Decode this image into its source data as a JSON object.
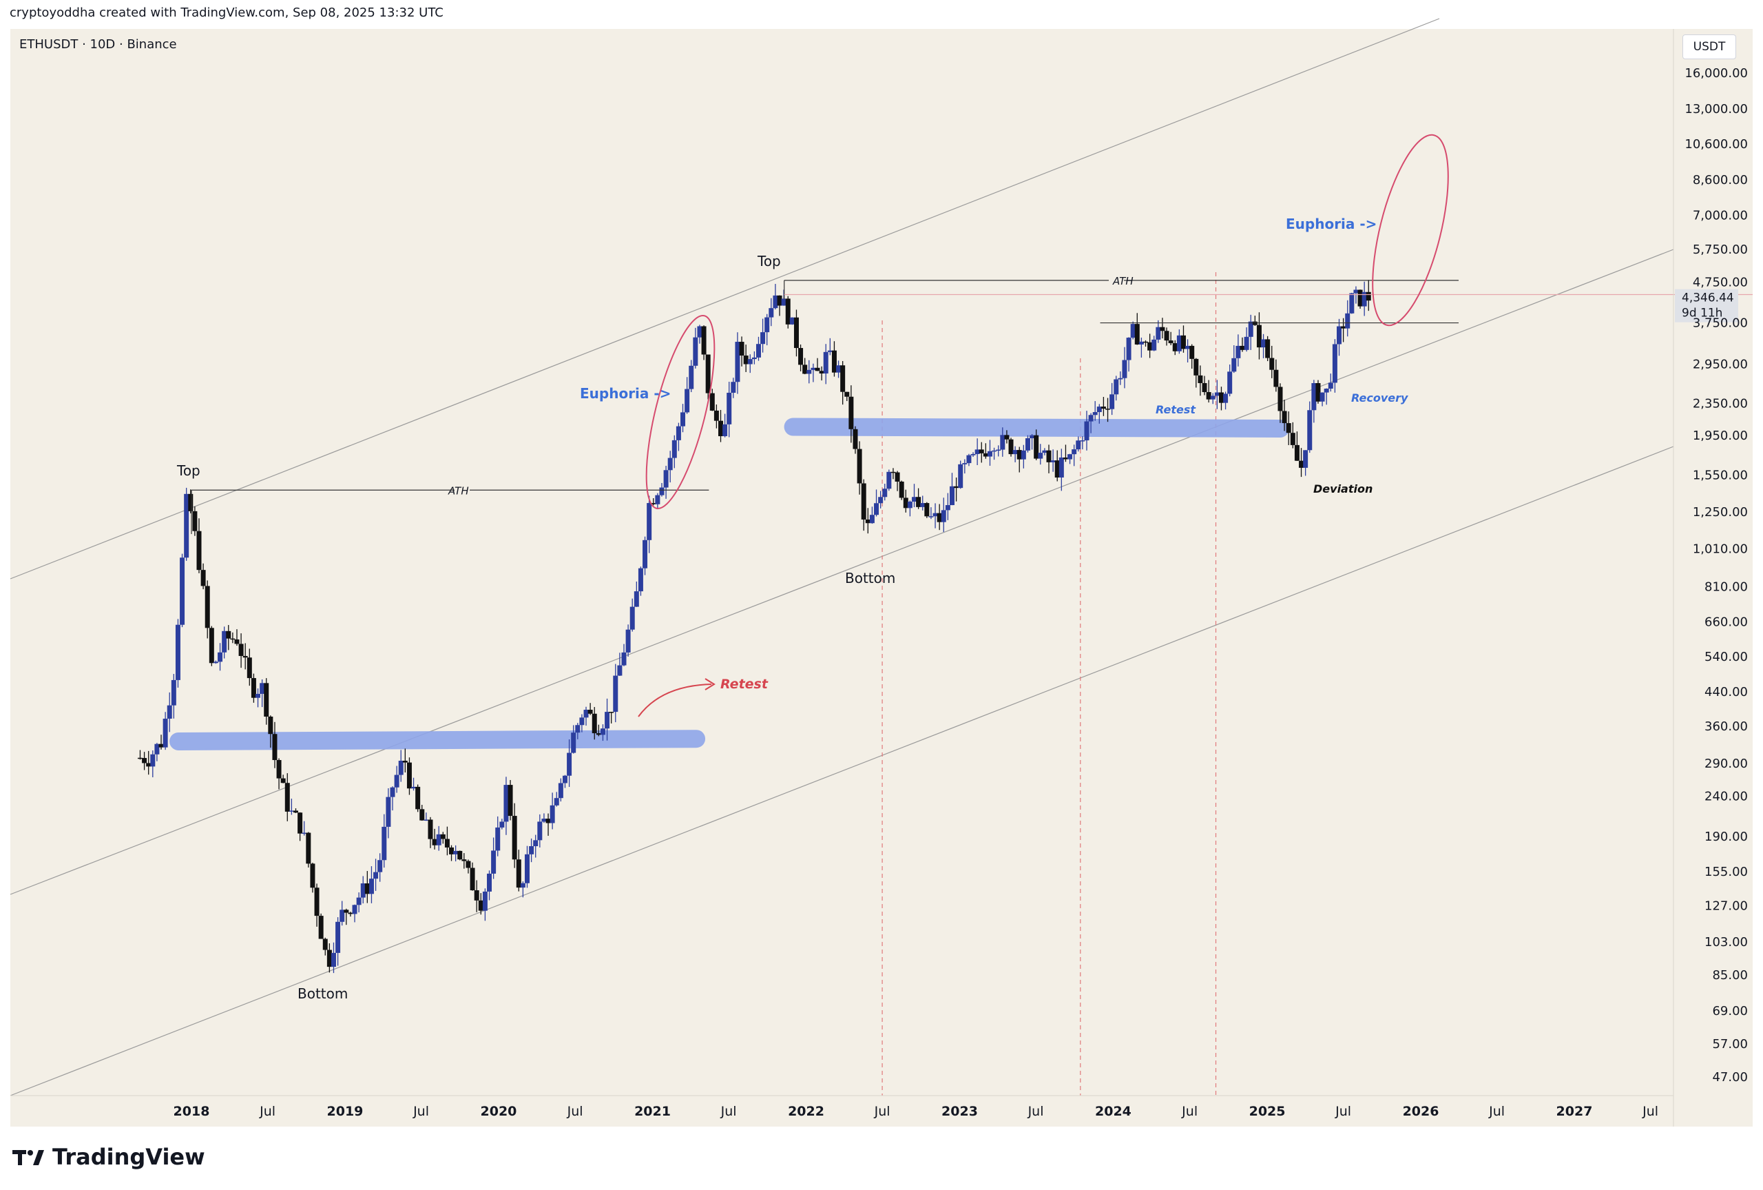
{
  "header": {
    "attribution": "cryptoyoddha created with TradingView.com, Sep 08, 2025 13:32 UTC"
  },
  "symbol_line": "ETHUSDT · 10D · Binance",
  "currency_label": "USDT",
  "brand": {
    "name": "TradingView"
  },
  "price_badge": {
    "price": "4,346.44",
    "countdown": "9d 11h"
  },
  "colors": {
    "background": "#f3efe6",
    "bull_candle": "#2c3e9e",
    "bear_candle": "#111111",
    "zone": "#8fa6ea",
    "euphoria_text": "#3b6fd8",
    "ellipse": "#d64b6e",
    "retest_red": "#d6454f",
    "deviation_text": "#111111",
    "channel": "#9a9a9a",
    "vline": "#e0787a"
  },
  "chart_data": {
    "type": "candlestick",
    "symbol": "ETHUSDT",
    "interval": "10D",
    "exchange": "Binance",
    "scale": "log",
    "currency": "USDT",
    "y_ticks": [
      "16,000.00",
      "13,000.00",
      "10,600.00",
      "8,600.00",
      "7,000.00",
      "5,750.00",
      "4,750.00",
      "3,750.00",
      "2,950.00",
      "2,350.00",
      "1,950.00",
      "1,550.00",
      "1,250.00",
      "1,010.00",
      "810.00",
      "660.00",
      "540.00",
      "440.00",
      "360.00",
      "290.00",
      "240.00",
      "190.00",
      "155.00",
      "127.00",
      "103.00",
      "85.00",
      "69.00",
      "57.00",
      "47.00"
    ],
    "x_ticks": [
      "2018",
      "Jul",
      "2019",
      "Jul",
      "2020",
      "Jul",
      "2021",
      "Jul",
      "2022",
      "Jul",
      "2023",
      "Jul",
      "2024",
      "Jul",
      "2025",
      "Jul",
      "2026",
      "Jul",
      "2027",
      "Jul"
    ],
    "x_ticks_bold": [
      true,
      false,
      true,
      false,
      true,
      false,
      true,
      false,
      true,
      false,
      true,
      false,
      true,
      false,
      true,
      false,
      true,
      false,
      true,
      false
    ],
    "last_price": 4346.44,
    "series_path": [
      [
        "2017-09-01",
        300
      ],
      [
        "2017-10-01",
        300
      ],
      [
        "2017-11-01",
        330
      ],
      [
        "2017-12-01",
        500
      ],
      [
        "2018-01-01",
        1400
      ],
      [
        "2018-02-01",
        900
      ],
      [
        "2018-03-01",
        500
      ],
      [
        "2018-04-01",
        600
      ],
      [
        "2018-05-01",
        600
      ],
      [
        "2018-06-01",
        450
      ],
      [
        "2018-07-01",
        450
      ],
      [
        "2018-08-01",
        280
      ],
      [
        "2018-09-01",
        220
      ],
      [
        "2018-10-01",
        200
      ],
      [
        "2018-11-01",
        130
      ],
      [
        "2018-12-01",
        90
      ],
      [
        "2019-01-01",
        120
      ],
      [
        "2019-02-01",
        130
      ],
      [
        "2019-03-01",
        140
      ],
      [
        "2019-04-01",
        160
      ],
      [
        "2019-05-01",
        250
      ],
      [
        "2019-06-01",
        300
      ],
      [
        "2019-07-01",
        220
      ],
      [
        "2019-08-01",
        190
      ],
      [
        "2019-09-01",
        180
      ],
      [
        "2019-10-01",
        180
      ],
      [
        "2019-11-01",
        150
      ],
      [
        "2019-12-01",
        130
      ],
      [
        "2020-01-01",
        170
      ],
      [
        "2020-02-01",
        260
      ],
      [
        "2020-03-01",
        130
      ],
      [
        "2020-04-01",
        190
      ],
      [
        "2020-05-01",
        210
      ],
      [
        "2020-06-01",
        230
      ],
      [
        "2020-07-01",
        330
      ],
      [
        "2020-08-01",
        400
      ],
      [
        "2020-09-01",
        360
      ],
      [
        "2020-10-01",
        390
      ],
      [
        "2020-11-01",
        550
      ],
      [
        "2020-12-01",
        730
      ],
      [
        "2021-01-01",
        1300
      ],
      [
        "2021-02-01",
        1500
      ],
      [
        "2021-03-01",
        1800
      ],
      [
        "2021-04-01",
        2500
      ],
      [
        "2021-05-01",
        3700
      ],
      [
        "2021-06-01",
        2200
      ],
      [
        "2021-07-01",
        2000
      ],
      [
        "2021-08-01",
        3200
      ],
      [
        "2021-09-01",
        3000
      ],
      [
        "2021-10-01",
        3800
      ],
      [
        "2021-11-01",
        4500
      ],
      [
        "2021-12-01",
        3900
      ],
      [
        "2022-01-01",
        3000
      ],
      [
        "2022-02-01",
        2700
      ],
      [
        "2022-03-01",
        3100
      ],
      [
        "2022-04-01",
        2800
      ],
      [
        "2022-05-01",
        2000
      ],
      [
        "2022-06-01",
        1100
      ],
      [
        "2022-07-01",
        1300
      ],
      [
        "2022-08-01",
        1700
      ],
      [
        "2022-09-01",
        1350
      ],
      [
        "2022-10-01",
        1300
      ],
      [
        "2022-11-01",
        1200
      ],
      [
        "2022-12-01",
        1200
      ],
      [
        "2023-01-01",
        1500
      ],
      [
        "2023-02-01",
        1650
      ],
      [
        "2023-03-01",
        1750
      ],
      [
        "2023-04-01",
        1900
      ],
      [
        "2023-05-01",
        1850
      ],
      [
        "2023-06-01",
        1800
      ],
      [
        "2023-07-01",
        1850
      ],
      [
        "2023-08-01",
        1700
      ],
      [
        "2023-09-01",
        1600
      ],
      [
        "2023-10-01",
        1700
      ],
      [
        "2023-11-01",
        2000
      ],
      [
        "2023-12-01",
        2250
      ],
      [
        "2024-01-01",
        2400
      ],
      [
        "2024-02-01",
        2900
      ],
      [
        "2024-03-01",
        3600
      ],
      [
        "2024-04-01",
        3200
      ],
      [
        "2024-05-01",
        3600
      ],
      [
        "2024-06-01",
        3400
      ],
      [
        "2024-07-01",
        3200
      ],
      [
        "2024-08-01",
        2600
      ],
      [
        "2024-09-01",
        2500
      ],
      [
        "2024-10-01",
        2500
      ],
      [
        "2024-11-01",
        3200
      ],
      [
        "2024-12-01",
        3700
      ],
      [
        "2025-01-01",
        3300
      ],
      [
        "2025-02-01",
        2700
      ],
      [
        "2025-03-01",
        1900
      ],
      [
        "2025-04-01",
        1600
      ],
      [
        "2025-05-01",
        2500
      ],
      [
        "2025-06-01",
        2500
      ],
      [
        "2025-07-01",
        3500
      ],
      [
        "2025-08-01",
        4300
      ],
      [
        "2025-09-01",
        4346
      ]
    ],
    "annotations": {
      "top_left": "Top",
      "top_right": "Top",
      "bottom_left": "Bottom",
      "bottom_right": "Bottom",
      "ath_left": "ATH",
      "ath_right": "ATH",
      "euphoria_left": "Euphoria ->",
      "euphoria_right": "Euphoria ->",
      "retest_red": "Retest",
      "retest_blue": "Retest",
      "recovery": "Recovery",
      "deviation": "Deviation"
    },
    "grid": false
  }
}
